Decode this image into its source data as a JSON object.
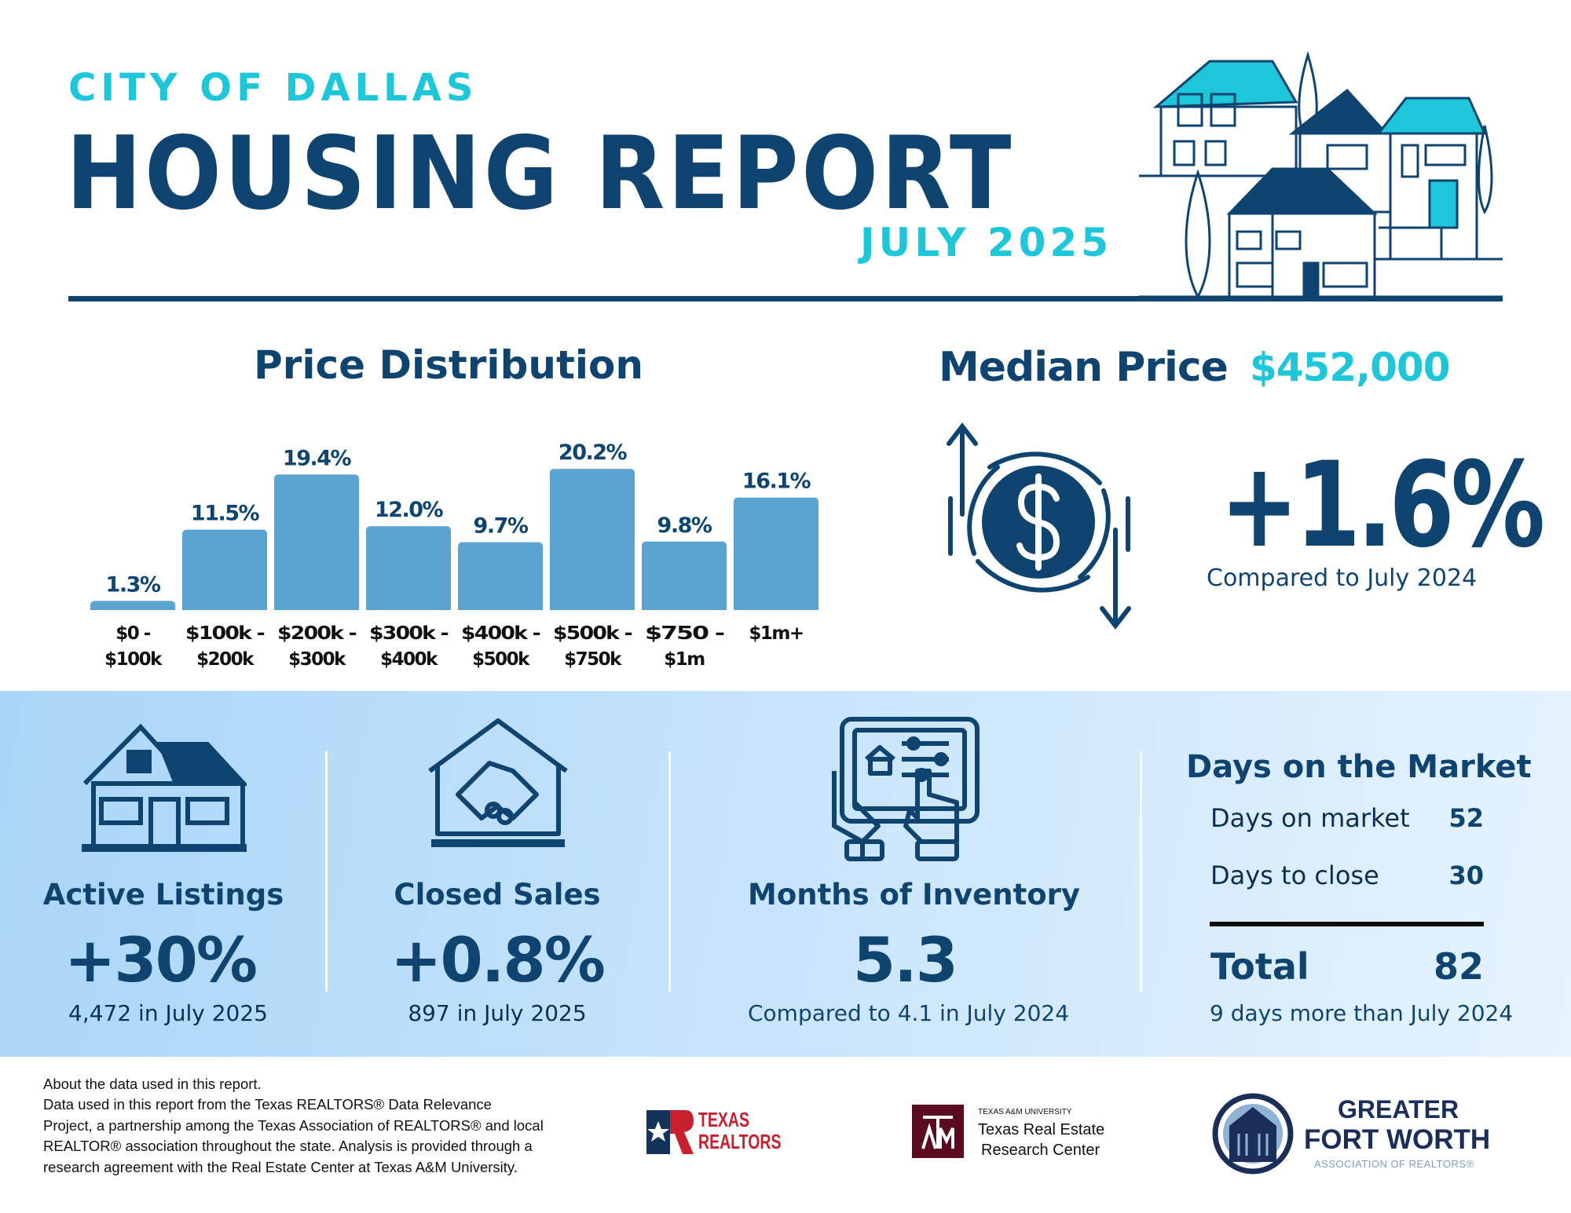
{
  "header": {
    "city": "CITY OF DALLAS",
    "title": "HOUSING REPORT",
    "month": "JULY 2025"
  },
  "price_distribution": {
    "title": "Price Distribution"
  },
  "chart_data": {
    "type": "bar",
    "title": "Price Distribution",
    "categories": [
      [
        "$0 -",
        "$100k"
      ],
      [
        "$100k -",
        "$200k"
      ],
      [
        "$200k -",
        "$300k"
      ],
      [
        "$300k -",
        "$400k"
      ],
      [
        "$400k -",
        "$500k"
      ],
      [
        "$500k -",
        "$750k"
      ],
      [
        "$750 -",
        "$1m"
      ],
      [
        "$1m+",
        ""
      ]
    ],
    "values": [
      1.3,
      11.5,
      19.4,
      12.0,
      9.7,
      20.2,
      9.8,
      16.1
    ],
    "data_labels": [
      "1.3%",
      "11.5%",
      "19.4%",
      "12.0%",
      "9.7%",
      "20.2%",
      "9.8%",
      "16.1%"
    ],
    "unit": "%",
    "grid": false,
    "bar_color": "#5ba3d0",
    "label_color": "#0f4470"
  },
  "median_price": {
    "label": "Median Price",
    "value": "$452,000",
    "change": "+1.6%",
    "comparison": "Compared to July 2024",
    "icon": "dollar-cycle-icon"
  },
  "stats": [
    {
      "icon": "house-icon",
      "title": "Active Listings",
      "value": "+30%",
      "sub": "4,472 in July 2025"
    },
    {
      "icon": "handshake-house-icon",
      "title": "Closed Sales",
      "value": "+0.8%",
      "sub": "897 in July 2025"
    },
    {
      "icon": "tablet-icon",
      "title": "Months of Inventory",
      "value": "5.3",
      "sub": "Compared to 4.1 in July 2024"
    }
  ],
  "days_on_market": {
    "title": "Days on the Market",
    "rows": [
      {
        "label": "Days on market",
        "value": "52"
      },
      {
        "label": "Days to close",
        "value": "30"
      }
    ],
    "total_label": "Total",
    "total_value": "82",
    "sub": "9 days more than July 2024"
  },
  "footer": {
    "lines": [
      "About the data used in this report.",
      "Data used in this report from the Texas REALTORS® Data Relevance",
      "Project, a partnership among the Texas Association of REALTORS® and local",
      "REALTOR® association throughout the state. Analysis is provided through a",
      "research agreement with the Real Estate Center at Texas A&M University."
    ],
    "logos": {
      "texas_realtors": [
        "TEXAS",
        "REALTORS"
      ],
      "tamu": {
        "small": "TEXAS A&M UNIVERSITY",
        "line1": "Texas Real Estate",
        "line2": "Research Center"
      },
      "gfw": {
        "line1": "GREATER",
        "line2": "FORT WORTH",
        "line3": "ASSOCIATION OF REALTORS®"
      }
    }
  },
  "colors": {
    "navy": "#0f4470",
    "cyan": "#1ec6da",
    "bar": "#5ba3d0",
    "band": "#b8dcfa"
  }
}
